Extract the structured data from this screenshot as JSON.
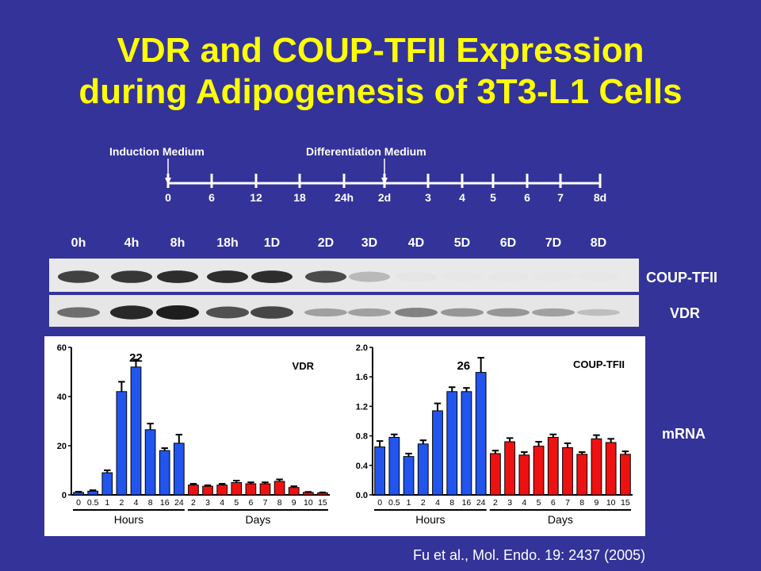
{
  "slide": {
    "title_line1": "VDR and COUP-TFII Expression",
    "title_line2": "during Adipogenesis of 3T3-L1 Cells",
    "citation": "Fu et al., Mol. Endo. 19: 2437 (2005)"
  },
  "timeline": {
    "induction_label": "Induction Medium",
    "differentiation_label": "Differentiation Medium",
    "ticks": [
      "0",
      "6",
      "12",
      "18",
      "24h",
      "2d",
      "3",
      "4",
      "5",
      "6",
      "7",
      "8d"
    ]
  },
  "blot": {
    "lanes": [
      "0h",
      "4h",
      "8h",
      "18h",
      "1D",
      "2D",
      "3D",
      "4D",
      "5D",
      "6D",
      "7D",
      "8D"
    ],
    "row1_label": "COUP-TFII",
    "row2_label": "VDR",
    "side_label": "mRNA",
    "coup_intensity": [
      0.85,
      0.9,
      0.95,
      0.95,
      0.95,
      0.8,
      0.25,
      0.03,
      0.02,
      0.02,
      0.02,
      0.02
    ],
    "vdr_intensity": [
      0.6,
      0.95,
      1.0,
      0.75,
      0.8,
      0.35,
      0.35,
      0.5,
      0.4,
      0.4,
      0.35,
      0.2
    ]
  },
  "chart_data": [
    {
      "type": "bar",
      "title": "VDR",
      "annotation": "22",
      "x_labels": [
        "0",
        "0.5",
        "1",
        "2",
        "4",
        "8",
        "16",
        "24",
        "2",
        "3",
        "4",
        "5",
        "6",
        "7",
        "8",
        "9",
        "10",
        "15"
      ],
      "groups": [
        {
          "label": "Hours",
          "count": 8,
          "color": "#2255ee"
        },
        {
          "label": "Days",
          "count": 10,
          "color": "#ee1111"
        }
      ],
      "values": [
        1,
        1.5,
        9,
        42,
        52,
        26.5,
        18,
        21,
        4,
        3.5,
        4,
        5,
        4.5,
        4.5,
        5.5,
        3,
        1,
        0.8
      ],
      "errors": [
        0.3,
        0.4,
        1,
        4,
        3,
        2.5,
        1,
        3.5,
        0.5,
        0.4,
        0.5,
        0.8,
        0.6,
        0.6,
        0.8,
        0.5,
        0.2,
        0.2
      ],
      "ylim": [
        0,
        60
      ],
      "yticks": [
        0,
        20,
        40,
        60
      ]
    },
    {
      "type": "bar",
      "title": "COUP-TFII",
      "annotation": "26",
      "x_labels": [
        "0",
        "0.5",
        "1",
        "2",
        "4",
        "8",
        "16",
        "24",
        "2",
        "3",
        "4",
        "5",
        "6",
        "7",
        "8",
        "9",
        "10",
        "15"
      ],
      "groups": [
        {
          "label": "Hours",
          "count": 8,
          "color": "#2255ee"
        },
        {
          "label": "Days",
          "count": 10,
          "color": "#ee1111"
        }
      ],
      "values": [
        0.65,
        0.78,
        0.52,
        0.69,
        1.14,
        1.4,
        1.4,
        1.66,
        0.56,
        0.72,
        0.54,
        0.66,
        0.78,
        0.64,
        0.55,
        0.76,
        0.71,
        0.55
      ],
      "errors": [
        0.08,
        0.04,
        0.04,
        0.05,
        0.1,
        0.06,
        0.05,
        0.2,
        0.04,
        0.05,
        0.04,
        0.06,
        0.04,
        0.06,
        0.03,
        0.05,
        0.05,
        0.04
      ],
      "ylim": [
        0,
        2.0
      ],
      "yticks": [
        0,
        0.4,
        0.8,
        1.2,
        1.6,
        2.0
      ]
    }
  ]
}
